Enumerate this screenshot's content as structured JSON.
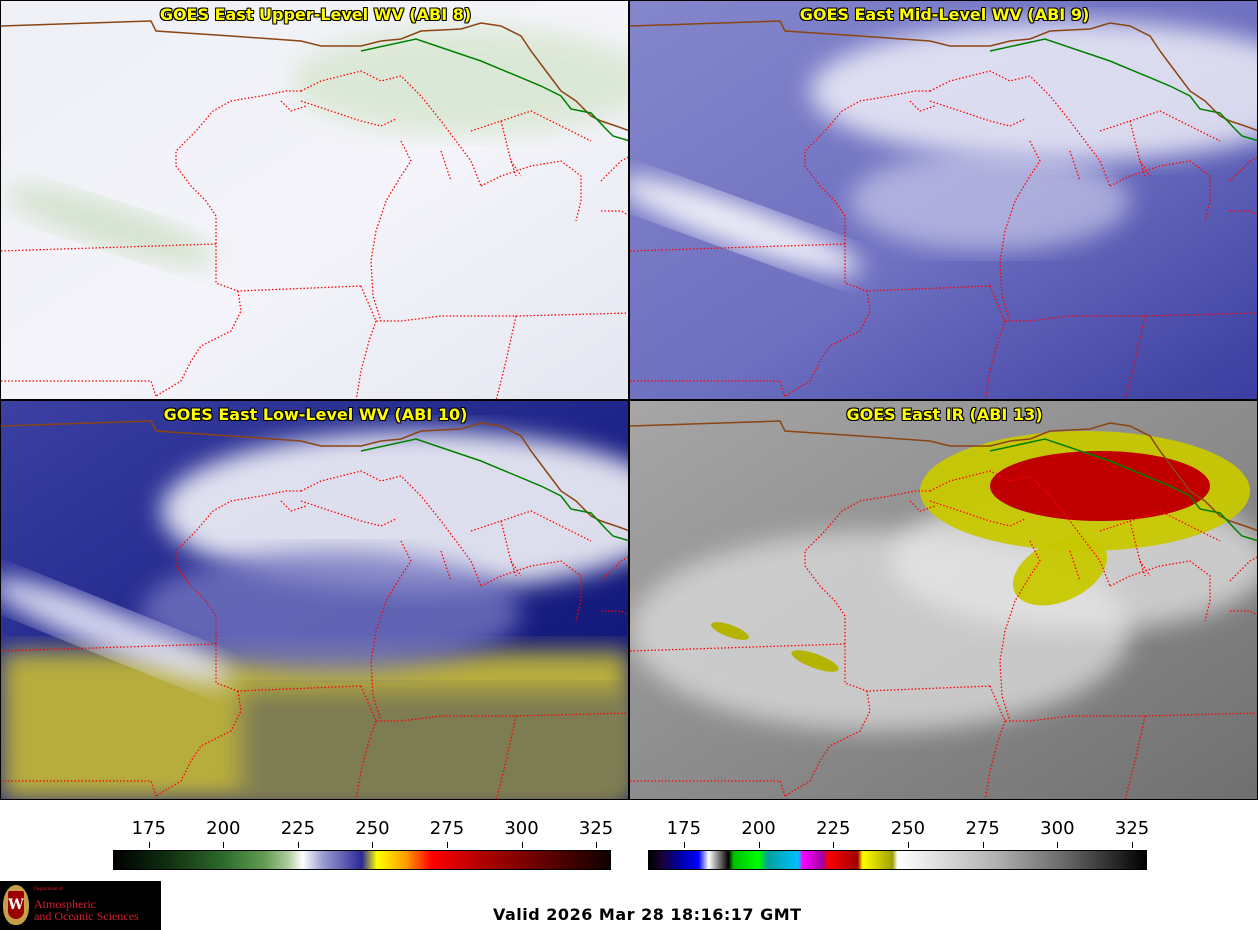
{
  "panels": [
    {
      "title": "GOES East Upper-Level WV (ABI 8)",
      "style": "wv-upper"
    },
    {
      "title": "GOES East Mid-Level WV (ABI 9)",
      "style": "wv-mid"
    },
    {
      "title": "GOES East Low-Level WV (ABI 10)",
      "style": "wv-low"
    },
    {
      "title": "GOES East IR (ABI 13)",
      "style": "ir"
    }
  ],
  "colorbars": [
    {
      "ticks": [
        "175",
        "200",
        "225",
        "250",
        "275",
        "300",
        "325"
      ],
      "values": [
        175,
        200,
        225,
        250,
        275,
        300,
        325
      ],
      "range": [
        163,
        330
      ]
    },
    {
      "ticks": [
        "175",
        "200",
        "225",
        "250",
        "275",
        "300",
        "325"
      ],
      "values": [
        175,
        200,
        225,
        250,
        275,
        300,
        325
      ],
      "range": [
        163,
        330
      ]
    }
  ],
  "logo": {
    "dept": "Department of",
    "line1": "Atmospheric",
    "line2": "and Oceanic Sciences",
    "seal": "W"
  },
  "valid_time": "Valid 2026 Mar 28 18:16:17 GMT",
  "colors": {
    "title_text": "#ffff00",
    "state_borders": "#ff0000",
    "intl_border": "#008000",
    "coast": "#8b4513"
  }
}
